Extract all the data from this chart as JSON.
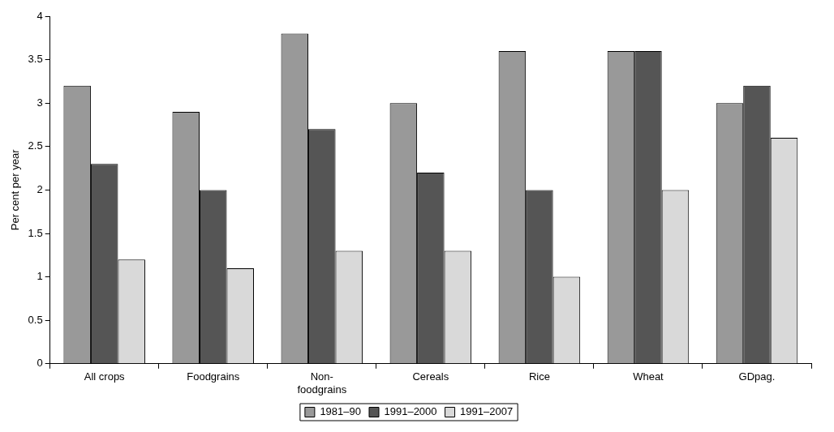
{
  "chart_data": {
    "type": "bar",
    "ylabel": "Per cent per year",
    "categories": [
      "All crops",
      "Foodgrains",
      "Non-\nfoodgrains",
      "Cereals",
      "Rice",
      "Wheat",
      "GDpag."
    ],
    "series": [
      {
        "name": "1981–90",
        "color": "#999999",
        "values": [
          3.2,
          2.9,
          3.8,
          3.0,
          3.6,
          3.6,
          3.0
        ]
      },
      {
        "name": "1991–2000",
        "color": "#555555",
        "values": [
          2.3,
          2.0,
          2.7,
          2.2,
          2.0,
          3.6,
          3.2
        ]
      },
      {
        "name": "1991–2007",
        "color": "#d9d9d9",
        "values": [
          1.2,
          1.1,
          1.3,
          1.3,
          1.0,
          2.0,
          2.6
        ]
      }
    ],
    "ylim": [
      0,
      4
    ],
    "yticks": [
      0,
      0.5,
      1,
      1.5,
      2,
      2.5,
      3,
      3.5,
      4
    ],
    "grid": false,
    "legend": "bottom"
  }
}
